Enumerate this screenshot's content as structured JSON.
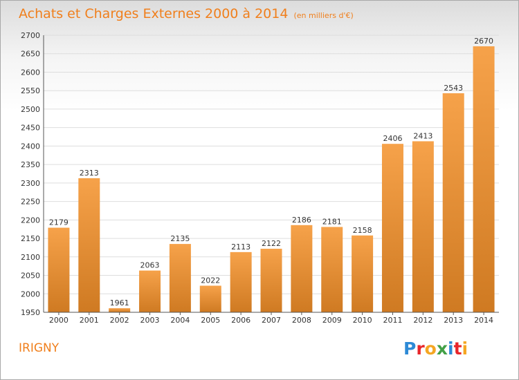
{
  "title": "Achats et Charges Externes 2000 à 2014",
  "unit": "(en milliers d'€)",
  "place": "IRIGNY",
  "logo": "Proxiti",
  "colors": {
    "bar_top": "#f6a24a",
    "bar_bottom": "#cf7a22",
    "accent": "#f07f1c",
    "grid": "#dddddd"
  },
  "chart_data": {
    "type": "bar",
    "title": "Achats et Charges Externes 2000 à 2014",
    "subtitle": "(en milliers d'€)",
    "xlabel": "",
    "ylabel": "",
    "categories": [
      "2000",
      "2001",
      "2002",
      "2003",
      "2004",
      "2005",
      "2006",
      "2007",
      "2008",
      "2009",
      "2010",
      "2011",
      "2012",
      "2013",
      "2014"
    ],
    "values": [
      2179,
      2313,
      1961,
      2063,
      2135,
      2022,
      2113,
      2122,
      2186,
      2181,
      2158,
      2406,
      2413,
      2543,
      2670
    ],
    "ylim": [
      1950,
      2700
    ],
    "yticks": [
      1950,
      2000,
      2050,
      2100,
      2150,
      2200,
      2250,
      2300,
      2350,
      2400,
      2450,
      2500,
      2550,
      2600,
      2650,
      2700
    ],
    "grid": true,
    "legend": "none"
  }
}
